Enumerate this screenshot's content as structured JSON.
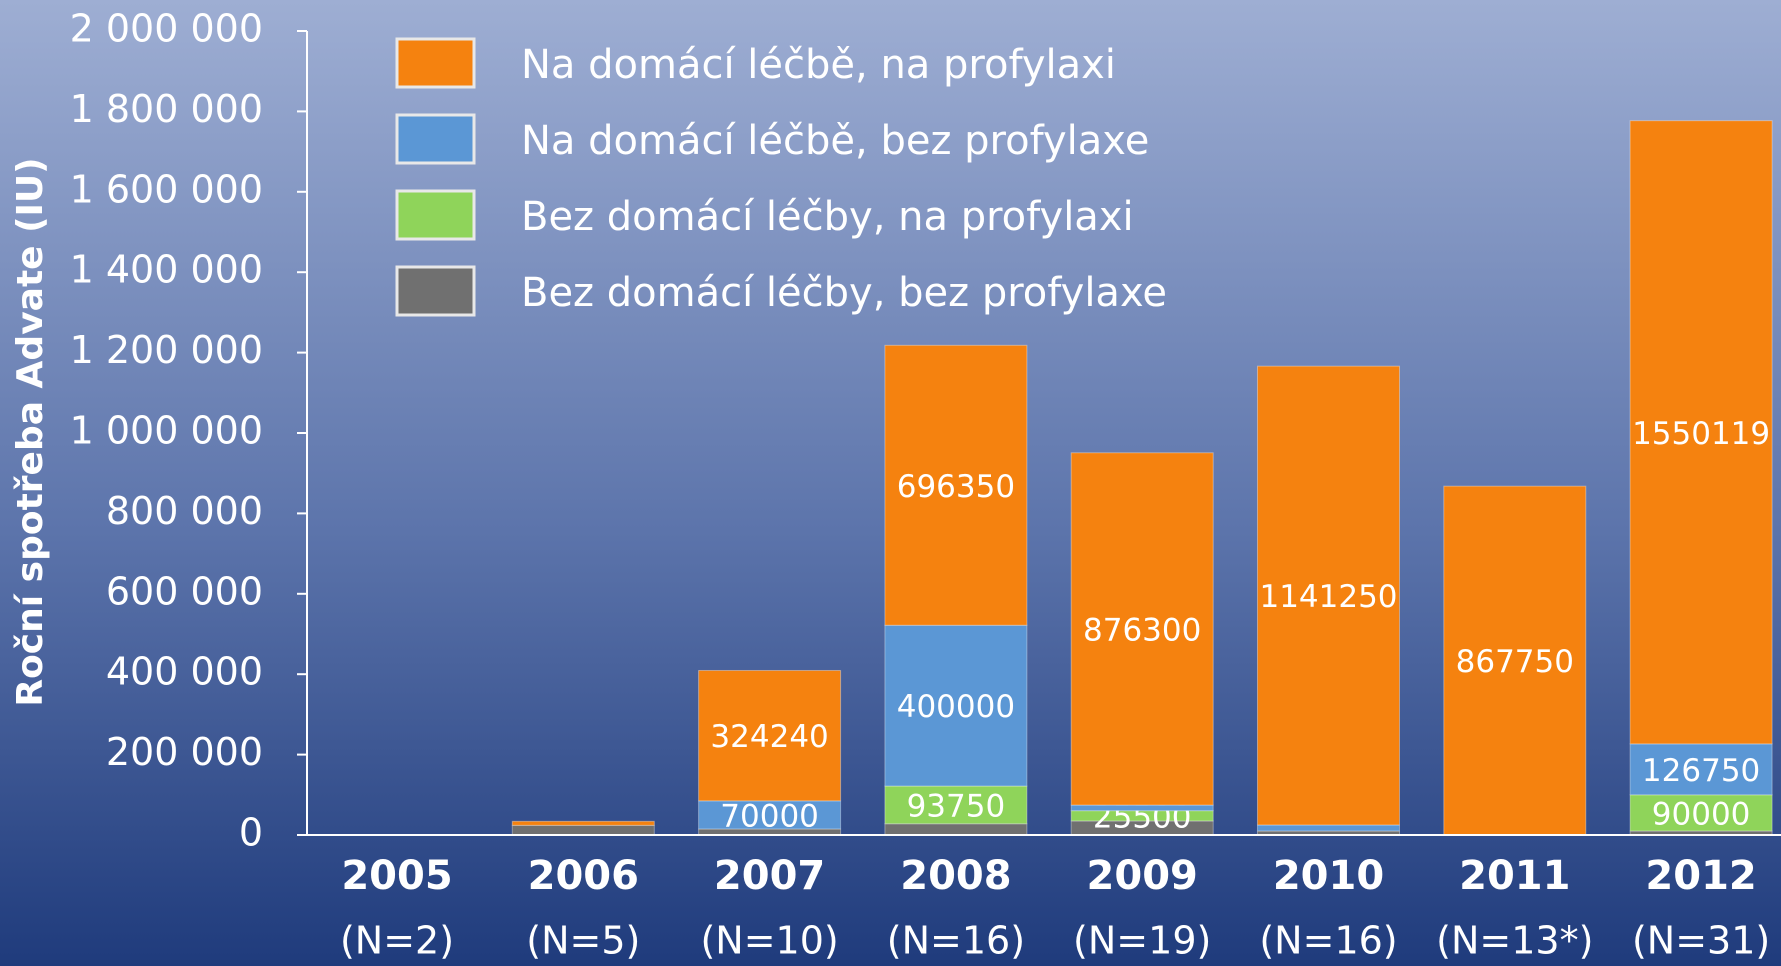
{
  "chart_data": {
    "type": "stacked-bar",
    "ylabel": "Roční spotřeba Advate (IU)",
    "categories": [
      "2005",
      "2006",
      "2007",
      "2008",
      "2009",
      "2010",
      "2011",
      "2012"
    ],
    "category_notes": [
      "(N=2)",
      "(N=5)",
      "(N=10)",
      "(N=16)",
      "(N=19)",
      "(N=16)",
      "(N=13*)",
      "(N=31)"
    ],
    "series": [
      {
        "name": "Na domácí léčbě, na profylaxi",
        "color": "#f5820f",
        "values": [
          0,
          10000,
          324240,
          696350,
          876300,
          1141250,
          867750,
          1550119
        ],
        "value_labels": [
          null,
          null,
          "324240",
          "696350",
          "876300",
          "1141250",
          "867750",
          "1550119"
        ]
      },
      {
        "name": "Na domácí léčbě, bez profylaxe",
        "color": "#5b97d5",
        "values": [
          0,
          0,
          70000,
          400000,
          14000,
          15000,
          0,
          126750
        ],
        "value_labels": [
          null,
          null,
          "70000",
          "400000",
          null,
          null,
          null,
          "126750"
        ]
      },
      {
        "name": "Bez domácí léčby, na profylaxi",
        "color": "#8fd45a",
        "values": [
          0,
          0,
          0,
          93750,
          25500,
          0,
          0,
          90000
        ],
        "value_labels": [
          null,
          null,
          null,
          "93750",
          "25500",
          null,
          null,
          "90000"
        ]
      },
      {
        "name": "Bez domácí léčby, bez profylaxe",
        "color": "#707070",
        "values": [
          0,
          24000,
          15000,
          28000,
          35000,
          10000,
          0,
          10000
        ],
        "value_labels": [
          null,
          null,
          null,
          null,
          null,
          null,
          null,
          null
        ]
      }
    ],
    "ylim": [
      0,
      2000000
    ],
    "yticks": [
      0,
      {
        "value": 200000,
        "label": "200 000"
      },
      {
        "value": 400000,
        "label": "400 000"
      },
      {
        "value": 600000,
        "label": "600 000"
      },
      {
        "value": 800000,
        "label": "800 000"
      },
      {
        "value": 1000000,
        "label": "1 000 000"
      },
      {
        "value": 1200000,
        "label": "1 200 000"
      },
      {
        "value": 1400000,
        "label": "1 400 000"
      },
      {
        "value": 1600000,
        "label": "1 600 000"
      },
      {
        "value": 1800000,
        "label": "1 800 000"
      },
      {
        "value": 2000000,
        "label": "2 000 000"
      }
    ]
  }
}
